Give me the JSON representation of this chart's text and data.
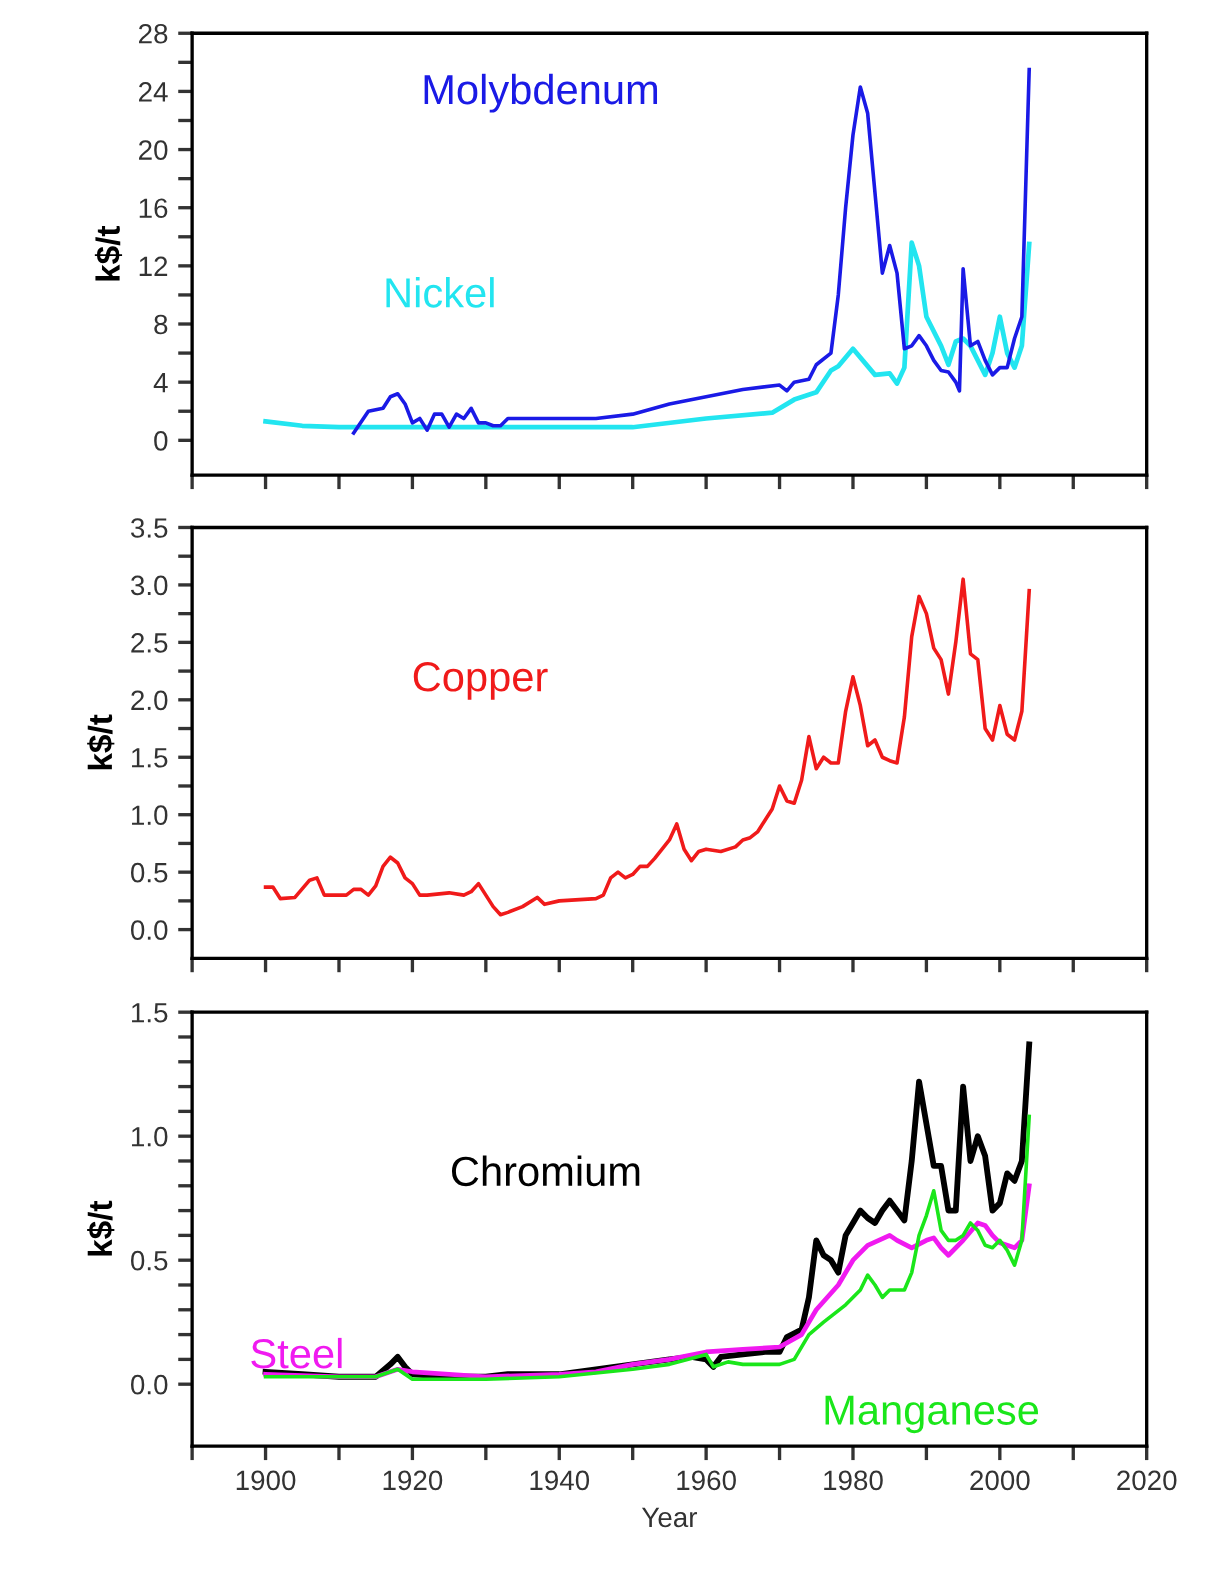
{
  "chart_data": [
    {
      "type": "line",
      "ylabel": "k$/t",
      "xlim": [
        1890,
        2020
      ],
      "ylim": [
        -2.4,
        28
      ],
      "tick_labels": "y",
      "grid": false,
      "legend": false,
      "xticks": [
        {
          "value": 1890,
          "label": null
        },
        {
          "value": 1900,
          "label": null
        },
        {
          "value": 1910,
          "label": null
        },
        {
          "value": 1920,
          "label": null
        },
        {
          "value": 1930,
          "label": null
        },
        {
          "value": 1940,
          "label": null
        },
        {
          "value": 1950,
          "label": null
        },
        {
          "value": 1960,
          "label": null
        },
        {
          "value": 1970,
          "label": null
        },
        {
          "value": 1980,
          "label": null
        },
        {
          "value": 1990,
          "label": null
        },
        {
          "value": 2000,
          "label": null
        },
        {
          "value": 2010,
          "label": null
        },
        {
          "value": 2020,
          "label": null
        }
      ],
      "yticks": [
        0,
        {
          "value": 2,
          "label": null
        },
        4,
        {
          "value": 6,
          "label": null
        },
        8,
        {
          "value": 10,
          "label": null
        },
        12,
        {
          "value": 14,
          "label": null
        },
        16,
        {
          "value": 18,
          "label": null
        },
        20,
        {
          "value": 22,
          "label": null
        },
        24,
        {
          "value": 26,
          "label": null
        },
        28
      ],
      "series": [
        {
          "name": "Nickel",
          "color": "#22e5f0",
          "x": [
            1900,
            1905,
            1910,
            1920,
            1930,
            1940,
            1950,
            1960,
            1969,
            1972,
            1975,
            1977,
            1978,
            1980,
            1983,
            1985,
            1986,
            1987,
            1988,
            1989,
            1990,
            1992,
            1993,
            1994,
            1995,
            1996,
            1997,
            1998,
            1999,
            2000,
            2001,
            2002,
            2003,
            2004
          ],
          "values": [
            1.3,
            1.0,
            0.9,
            0.9,
            0.9,
            0.9,
            0.9,
            1.5,
            1.9,
            2.8,
            3.3,
            4.8,
            5.1,
            6.3,
            4.5,
            4.6,
            3.9,
            5.0,
            13.6,
            12.0,
            8.5,
            6.5,
            5.2,
            6.8,
            7.0,
            6.5,
            5.5,
            4.5,
            6.0,
            8.5,
            6.0,
            5.0,
            6.5,
            13.5
          ]
        },
        {
          "name": "Molybdenum",
          "color": "#1a1ae6",
          "x": [
            1912,
            1914,
            1916,
            1917,
            1918,
            1919,
            1920,
            1921,
            1922,
            1923,
            1924,
            1925,
            1926,
            1927,
            1928,
            1929,
            1930,
            1931,
            1932,
            1933,
            1935,
            1945,
            1950,
            1955,
            1960,
            1965,
            1970,
            1971,
            1972,
            1974,
            1975,
            1977,
            1978,
            1979,
            1980,
            1981,
            1982,
            1983,
            1984,
            1985,
            1986,
            1987,
            1988,
            1989,
            1990,
            1991,
            1992,
            1993,
            1994,
            1994.5,
            1995,
            1996,
            1997,
            1998,
            1999,
            2000,
            2001,
            2002,
            2003,
            2004
          ],
          "values": [
            0.5,
            2.0,
            2.2,
            3.0,
            3.2,
            2.5,
            1.2,
            1.5,
            0.7,
            1.8,
            1.8,
            0.9,
            1.8,
            1.5,
            2.2,
            1.2,
            1.2,
            1.0,
            1.0,
            1.5,
            1.5,
            1.5,
            1.8,
            2.5,
            3.0,
            3.5,
            3.8,
            3.4,
            4.0,
            4.2,
            5.2,
            6.0,
            10.0,
            16.0,
            21.0,
            24.3,
            22.5,
            17.0,
            11.5,
            13.4,
            11.5,
            6.3,
            6.5,
            7.2,
            6.5,
            5.5,
            4.8,
            4.7,
            4.0,
            3.4,
            11.8,
            6.5,
            6.8,
            5.5,
            4.5,
            5.0,
            5.0,
            7.0,
            8.5,
            25.5
          ]
        }
      ]
    },
    {
      "type": "line",
      "ylabel": "k$/t",
      "xlim": [
        1890,
        2020
      ],
      "ylim": [
        -0.25,
        3.5
      ],
      "tick_labels": "y",
      "grid": false,
      "legend": false,
      "xticks": [
        {
          "value": 1890,
          "label": null
        },
        {
          "value": 1900,
          "label": null
        },
        {
          "value": 1910,
          "label": null
        },
        {
          "value": 1920,
          "label": null
        },
        {
          "value": 1930,
          "label": null
        },
        {
          "value": 1940,
          "label": null
        },
        {
          "value": 1950,
          "label": null
        },
        {
          "value": 1960,
          "label": null
        },
        {
          "value": 1970,
          "label": null
        },
        {
          "value": 1980,
          "label": null
        },
        {
          "value": 1990,
          "label": null
        },
        {
          "value": 2000,
          "label": null
        },
        {
          "value": 2010,
          "label": null
        },
        {
          "value": 2020,
          "label": null
        }
      ],
      "yticks": [
        {
          "value": 0,
          "label": "0.0"
        },
        {
          "value": 0.25,
          "label": null
        },
        {
          "value": 0.5,
          "label": "0.5"
        },
        {
          "value": 0.75,
          "label": null
        },
        {
          "value": 1,
          "label": "1.0"
        },
        {
          "value": 1.25,
          "label": null
        },
        {
          "value": 1.5,
          "label": "1.5"
        },
        {
          "value": 1.75,
          "label": null
        },
        {
          "value": 2,
          "label": "2.0"
        },
        {
          "value": 2.25,
          "label": null
        },
        {
          "value": 2.5,
          "label": "2.5"
        },
        {
          "value": 2.75,
          "label": null
        },
        {
          "value": 3,
          "label": "3.0"
        },
        {
          "value": 3.25,
          "label": null
        },
        {
          "value": 3.5,
          "label": "3.5"
        }
      ],
      "series": [
        {
          "name": "Copper",
          "color": "#f01a1a",
          "x": [
            1900,
            1901,
            1902,
            1904,
            1906,
            1907,
            1908,
            1910,
            1911,
            1912,
            1913,
            1914,
            1915,
            1916,
            1917,
            1918,
            1919,
            1920,
            1921,
            1922,
            1925,
            1927,
            1928,
            1929,
            1930,
            1931,
            1932,
            1933,
            1935,
            1937,
            1938,
            1940,
            1945,
            1946,
            1947,
            1948,
            1949,
            1950,
            1951,
            1952,
            1953,
            1955,
            1956,
            1957,
            1958,
            1959,
            1960,
            1962,
            1964,
            1965,
            1966,
            1967,
            1968,
            1969,
            1970,
            1971,
            1972,
            1973,
            1974,
            1975,
            1976,
            1977,
            1978,
            1979,
            1980,
            1981,
            1982,
            1983,
            1984,
            1985,
            1986,
            1987,
            1988,
            1989,
            1990,
            1991,
            1992,
            1993,
            1994,
            1995,
            1996,
            1997,
            1998,
            1999,
            2000,
            2001,
            2002,
            2003,
            2004
          ],
          "values": [
            0.37,
            0.37,
            0.27,
            0.28,
            0.43,
            0.45,
            0.3,
            0.3,
            0.3,
            0.35,
            0.35,
            0.3,
            0.38,
            0.55,
            0.63,
            0.58,
            0.45,
            0.4,
            0.3,
            0.3,
            0.32,
            0.3,
            0.33,
            0.4,
            0.3,
            0.2,
            0.13,
            0.15,
            0.2,
            0.28,
            0.22,
            0.25,
            0.27,
            0.3,
            0.45,
            0.5,
            0.45,
            0.48,
            0.55,
            0.55,
            0.62,
            0.78,
            0.92,
            0.7,
            0.6,
            0.68,
            0.7,
            0.68,
            0.72,
            0.78,
            0.8,
            0.85,
            0.95,
            1.05,
            1.25,
            1.12,
            1.1,
            1.3,
            1.68,
            1.4,
            1.5,
            1.45,
            1.45,
            1.9,
            2.2,
            1.95,
            1.6,
            1.65,
            1.5,
            1.47,
            1.45,
            1.85,
            2.55,
            2.9,
            2.75,
            2.45,
            2.35,
            2.05,
            2.5,
            3.05,
            2.4,
            2.35,
            1.75,
            1.65,
            1.95,
            1.7,
            1.65,
            1.9,
            2.95
          ]
        }
      ]
    },
    {
      "type": "line",
      "ylabel": "k$/t",
      "xlabel": "Year",
      "xlim": [
        1890,
        2020
      ],
      "ylim": [
        -0.25,
        1.5
      ],
      "grid": false,
      "legend": false,
      "xticks": [
        {
          "value": 1890,
          "label": null
        },
        1900,
        {
          "value": 1910,
          "label": null
        },
        1920,
        {
          "value": 1930,
          "label": null
        },
        1940,
        {
          "value": 1950,
          "label": null
        },
        1960,
        {
          "value": 1970,
          "label": null
        },
        1980,
        {
          "value": 1990,
          "label": null
        },
        2000,
        {
          "value": 2010,
          "label": null
        },
        2020
      ],
      "yticks": [
        {
          "value": 0,
          "label": "0.0"
        },
        {
          "value": 0.1,
          "label": null
        },
        {
          "value": 0.2,
          "label": null
        },
        {
          "value": 0.3,
          "label": null
        },
        {
          "value": 0.4,
          "label": null
        },
        {
          "value": 0.5,
          "label": "0.5"
        },
        {
          "value": 0.6,
          "label": null
        },
        {
          "value": 0.7,
          "label": null
        },
        {
          "value": 0.8,
          "label": null
        },
        {
          "value": 0.9,
          "label": null
        },
        {
          "value": 1,
          "label": "1.0"
        },
        {
          "value": 1.1,
          "label": null
        },
        {
          "value": 1.2,
          "label": null
        },
        {
          "value": 1.3,
          "label": null
        },
        {
          "value": 1.4,
          "label": null
        },
        {
          "value": 1.5,
          "label": "1.5"
        }
      ],
      "series": [
        {
          "name": "Chromium",
          "color": "#000000",
          "x": [
            1900,
            1905,
            1910,
            1915,
            1917,
            1918,
            1919,
            1920,
            1925,
            1930,
            1933,
            1940,
            1945,
            1950,
            1955,
            1958,
            1960,
            1961,
            1962,
            1965,
            1968,
            1970,
            1971,
            1973,
            1974,
            1975,
            1976,
            1977,
            1978,
            1979,
            1980,
            1981,
            1982,
            1983,
            1984,
            1985,
            1986,
            1987,
            1988,
            1989,
            1990,
            1991,
            1992,
            1993,
            1994,
            1995,
            1996,
            1997,
            1998,
            1999,
            2000,
            2001,
            2002,
            2003,
            2004
          ],
          "values": [
            0.05,
            0.04,
            0.03,
            0.03,
            0.08,
            0.11,
            0.07,
            0.04,
            0.03,
            0.03,
            0.04,
            0.04,
            0.06,
            0.08,
            0.1,
            0.11,
            0.1,
            0.07,
            0.11,
            0.12,
            0.13,
            0.13,
            0.19,
            0.22,
            0.35,
            0.58,
            0.52,
            0.5,
            0.45,
            0.6,
            0.65,
            0.7,
            0.67,
            0.65,
            0.7,
            0.74,
            0.7,
            0.66,
            0.9,
            1.22,
            1.05,
            0.88,
            0.88,
            0.7,
            0.7,
            1.2,
            0.9,
            1.0,
            0.92,
            0.7,
            0.73,
            0.85,
            0.82,
            0.9,
            1.37
          ]
        },
        {
          "name": "Steel",
          "color": "#f01af0",
          "x": [
            1900,
            1910,
            1915,
            1918,
            1920,
            1930,
            1940,
            1945,
            1950,
            1955,
            1960,
            1965,
            1970,
            1973,
            1975,
            1978,
            1980,
            1982,
            1985,
            1986,
            1988,
            1990,
            1991,
            1992,
            1993,
            1995,
            1997,
            1998,
            1999,
            2000,
            2002,
            2003,
            2004
          ],
          "values": [
            0.04,
            0.03,
            0.03,
            0.06,
            0.05,
            0.03,
            0.04,
            0.05,
            0.08,
            0.1,
            0.13,
            0.14,
            0.15,
            0.2,
            0.3,
            0.4,
            0.5,
            0.56,
            0.6,
            0.58,
            0.55,
            0.58,
            0.59,
            0.55,
            0.52,
            0.58,
            0.65,
            0.64,
            0.6,
            0.57,
            0.55,
            0.58,
            0.8
          ]
        },
        {
          "name": "Manganese",
          "color": "#1ae61a",
          "x": [
            1900,
            1915,
            1918,
            1920,
            1930,
            1940,
            1950,
            1955,
            1960,
            1961,
            1963,
            1965,
            1970,
            1972,
            1974,
            1976,
            1979,
            1981,
            1982,
            1983,
            1984,
            1985,
            1987,
            1988,
            1989,
            1990,
            1991,
            1992,
            1993,
            1994,
            1995,
            1996,
            1997,
            1998,
            1999,
            2000,
            2001,
            2002,
            2003,
            2004
          ],
          "values": [
            0.03,
            0.03,
            0.06,
            0.02,
            0.02,
            0.03,
            0.06,
            0.08,
            0.12,
            0.07,
            0.09,
            0.08,
            0.08,
            0.1,
            0.2,
            0.25,
            0.32,
            0.38,
            0.44,
            0.4,
            0.35,
            0.38,
            0.38,
            0.45,
            0.6,
            0.68,
            0.78,
            0.62,
            0.58,
            0.58,
            0.6,
            0.65,
            0.62,
            0.56,
            0.55,
            0.58,
            0.54,
            0.48,
            0.58,
            1.08
          ]
        }
      ]
    }
  ]
}
